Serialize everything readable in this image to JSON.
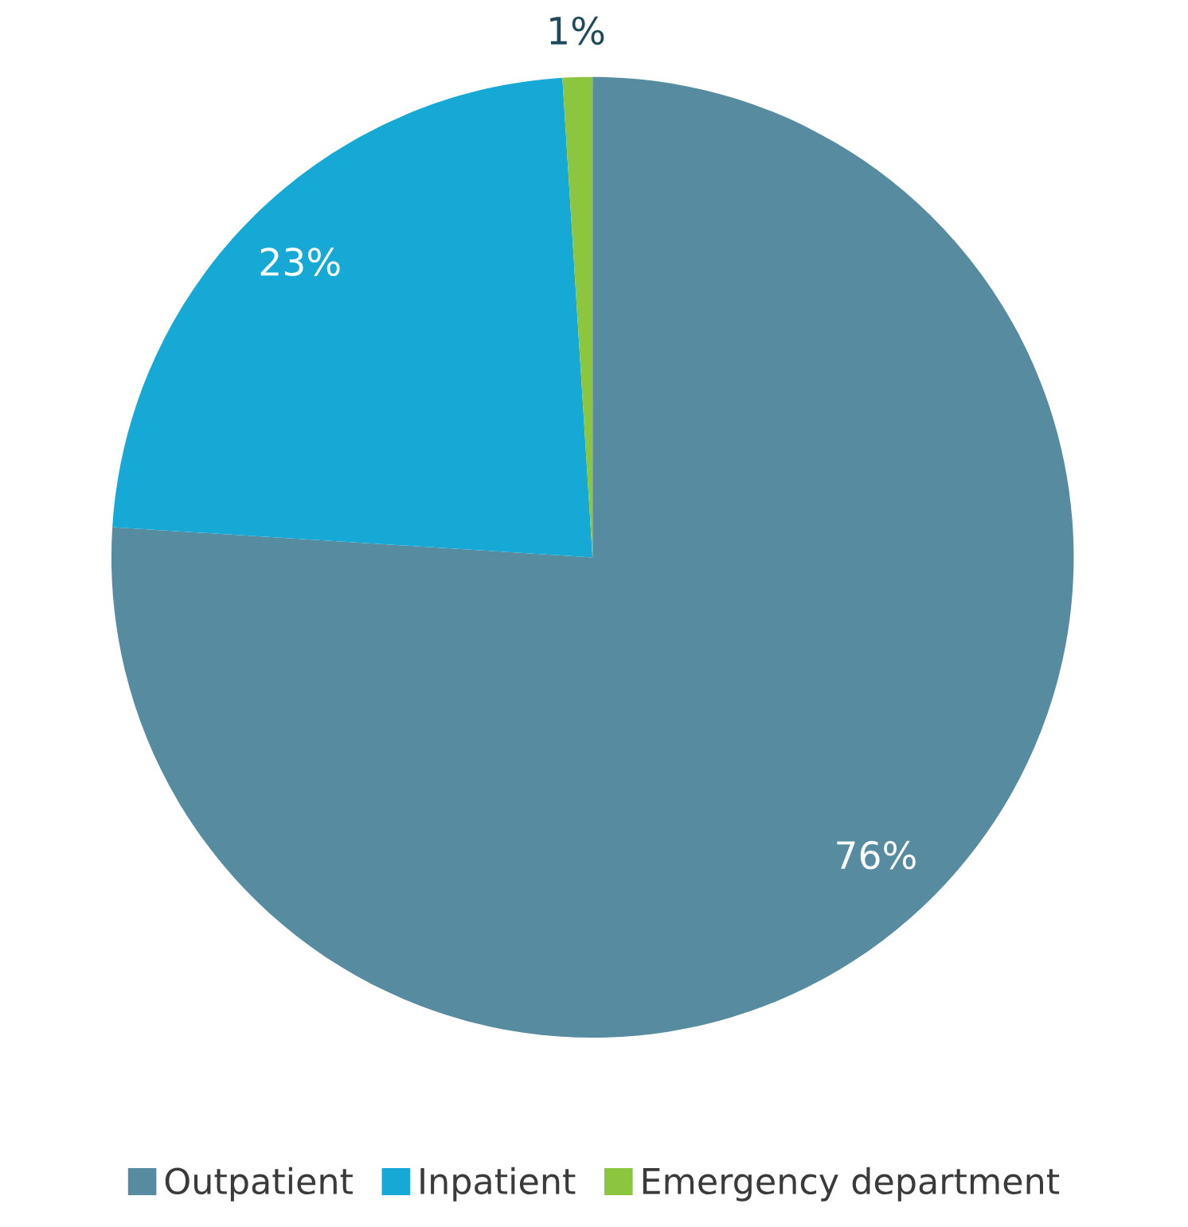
{
  "chart_data": {
    "type": "pie",
    "categories": [
      "Outpatient",
      "Inpatient",
      "Emergency department"
    ],
    "values": [
      76,
      23,
      1
    ],
    "colors": [
      "#568ba0",
      "#16a9d6",
      "#8cc63f"
    ],
    "value_labels": [
      "76%",
      "23%",
      "1%"
    ],
    "legend": "bottom"
  }
}
